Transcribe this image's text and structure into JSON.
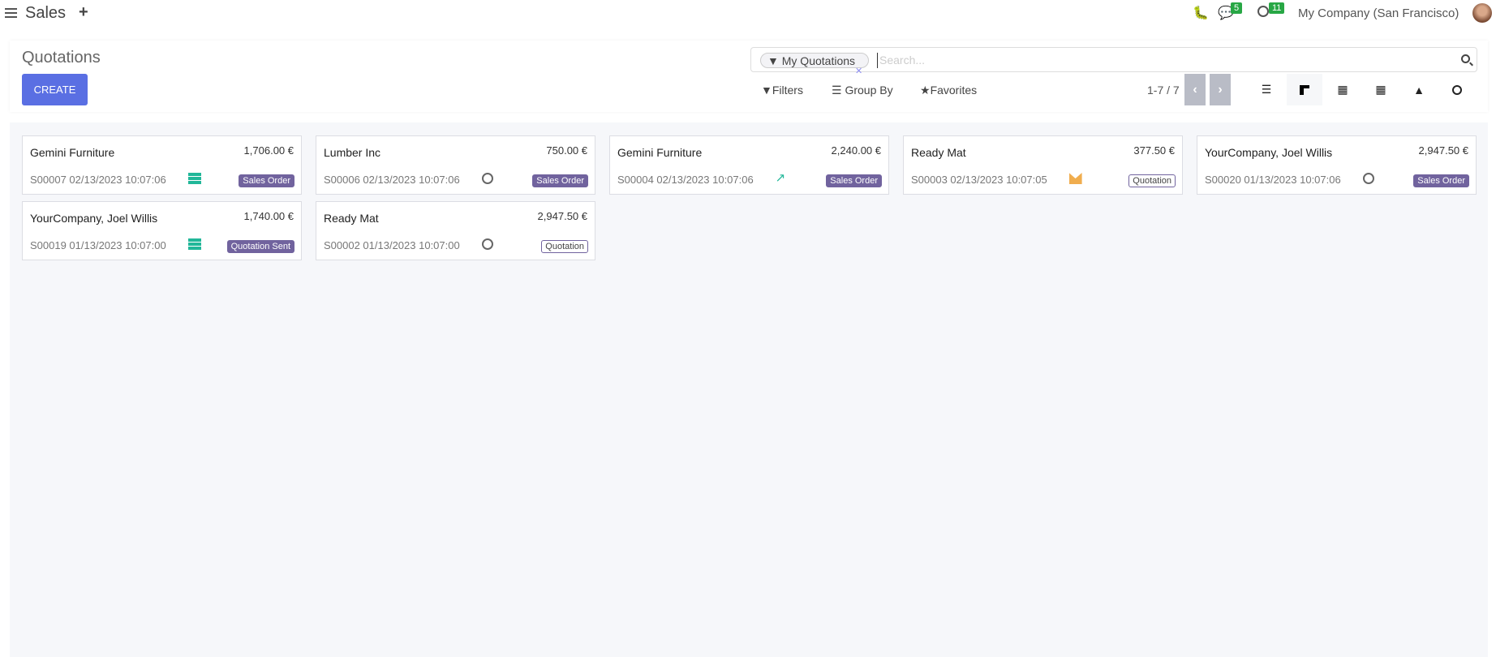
{
  "topbar": {
    "app_name": "Sales",
    "messages_count": "5",
    "activities_count": "11",
    "company": "My Company (San Francisco)"
  },
  "control_panel": {
    "title": "Quotations",
    "create_label": "CREATE",
    "search": {
      "facet": "My Quotations",
      "placeholder": "Search..."
    },
    "filters_label": "Filters",
    "group_by_label": "Group By",
    "favorites_label": "Favorites",
    "pager": "1-7 / 7"
  },
  "views": [
    "list",
    "kanban",
    "calendar",
    "pivot",
    "graph",
    "activity"
  ],
  "colors": {
    "accent": "#5a6fe3",
    "badge": "#71639e",
    "activity_green": "#21b799",
    "mail": "#f0ad4e",
    "notification": "#28a745"
  },
  "cards": [
    {
      "name": "Gemini Furniture",
      "amount": "1,706.00 €",
      "ref": "S00007 02/13/2023 10:07:06",
      "activity": "list-icon",
      "state": "Sales Order",
      "outline": false
    },
    {
      "name": "Lumber Inc",
      "amount": "750.00 €",
      "ref": "S00006 02/13/2023 10:07:06",
      "activity": "clock-icon",
      "state": "Sales Order",
      "outline": false
    },
    {
      "name": "Gemini Furniture",
      "amount": "2,240.00 €",
      "ref": "S00004 02/13/2023 10:07:06",
      "activity": "chart-icon",
      "state": "Sales Order",
      "outline": false
    },
    {
      "name": "Ready Mat",
      "amount": "377.50 €",
      "ref": "S00003 02/13/2023 10:07:05",
      "activity": "mail-icon",
      "state": "Quotation",
      "outline": true
    },
    {
      "name": "YourCompany, Joel Willis",
      "amount": "2,947.50 €",
      "ref": "S00020 01/13/2023 10:07:06",
      "activity": "clock-icon",
      "state": "Sales Order",
      "outline": false
    },
    {
      "name": "YourCompany, Joel Willis",
      "amount": "1,740.00 €",
      "ref": "S00019 01/13/2023 10:07:00",
      "activity": "list-icon",
      "state": "Quotation Sent",
      "outline": false
    },
    {
      "name": "Ready Mat",
      "amount": "2,947.50 €",
      "ref": "S00002 01/13/2023 10:07:00",
      "activity": "clock-icon",
      "state": "Quotation",
      "outline": true
    }
  ]
}
